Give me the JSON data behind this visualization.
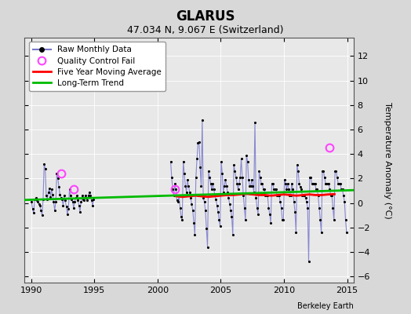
{
  "title": "GLARUS",
  "subtitle": "47.034 N, 9.067 E (Switzerland)",
  "ylabel": "Temperature Anomaly (°C)",
  "credit": "Berkeley Earth",
  "xlim": [
    1989.5,
    2015.5
  ],
  "ylim": [
    -6.5,
    13.5
  ],
  "yticks": [
    -6,
    -4,
    -2,
    0,
    2,
    4,
    6,
    8,
    10,
    12
  ],
  "xticks": [
    1990,
    1995,
    2000,
    2005,
    2010,
    2015
  ],
  "bg_color": "#d8d8d8",
  "plot_bg_color": "#e8e8e8",
  "raw_line_color": "#7777cc",
  "dot_color": "#000000",
  "ma_color": "#ff0000",
  "trend_color": "#00bb00",
  "qc_color": "#ff44ff",
  "raw_data_times": [
    1990.042,
    1990.125,
    1990.208,
    1990.292,
    1990.375,
    1990.458,
    1990.542,
    1990.625,
    1990.708,
    1990.792,
    1990.875,
    1990.958,
    1991.042,
    1991.125,
    1991.208,
    1991.292,
    1991.375,
    1991.458,
    1991.542,
    1991.625,
    1991.708,
    1991.792,
    1991.875,
    1991.958,
    1992.042,
    1992.125,
    1992.208,
    1992.292,
    1992.375,
    1992.458,
    1992.542,
    1992.625,
    1992.708,
    1992.792,
    1992.875,
    1992.958,
    1993.042,
    1993.125,
    1993.208,
    1993.292,
    1993.375,
    1993.458,
    1993.542,
    1993.625,
    1993.708,
    1993.792,
    1993.875,
    1993.958,
    1994.042,
    1994.125,
    1994.208,
    1994.292,
    1994.375,
    1994.458,
    1994.542,
    1994.625,
    1994.708,
    1994.792,
    1994.875,
    1994.958,
    2001.042,
    2001.125,
    2001.208,
    2001.292,
    2001.375,
    2001.458,
    2001.542,
    2001.625,
    2001.708,
    2001.792,
    2001.875,
    2001.958,
    2002.042,
    2002.125,
    2002.208,
    2002.292,
    2002.375,
    2002.458,
    2002.542,
    2002.625,
    2002.708,
    2002.792,
    2002.875,
    2002.958,
    2003.042,
    2003.125,
    2003.208,
    2003.292,
    2003.375,
    2003.458,
    2003.542,
    2003.625,
    2003.708,
    2003.792,
    2003.875,
    2003.958,
    2004.042,
    2004.125,
    2004.208,
    2004.292,
    2004.375,
    2004.458,
    2004.542,
    2004.625,
    2004.708,
    2004.792,
    2004.875,
    2004.958,
    2005.042,
    2005.125,
    2005.208,
    2005.292,
    2005.375,
    2005.458,
    2005.542,
    2005.625,
    2005.708,
    2005.792,
    2005.875,
    2005.958,
    2006.042,
    2006.125,
    2006.208,
    2006.292,
    2006.375,
    2006.458,
    2006.542,
    2006.625,
    2006.708,
    2006.792,
    2006.875,
    2006.958,
    2007.042,
    2007.125,
    2007.208,
    2007.292,
    2007.375,
    2007.458,
    2007.542,
    2007.625,
    2007.708,
    2007.792,
    2007.875,
    2007.958,
    2008.042,
    2008.125,
    2008.208,
    2008.292,
    2008.375,
    2008.458,
    2008.542,
    2008.625,
    2008.708,
    2008.792,
    2008.875,
    2008.958,
    2009.042,
    2009.125,
    2009.208,
    2009.292,
    2009.375,
    2009.458,
    2009.542,
    2009.625,
    2009.708,
    2009.792,
    2009.875,
    2009.958,
    2010.042,
    2010.125,
    2010.208,
    2010.292,
    2010.375,
    2010.458,
    2010.542,
    2010.625,
    2010.708,
    2010.792,
    2010.875,
    2010.958,
    2011.042,
    2011.125,
    2011.208,
    2011.292,
    2011.375,
    2011.458,
    2011.542,
    2011.625,
    2011.708,
    2011.792,
    2011.875,
    2011.958,
    2012.042,
    2012.125,
    2012.208,
    2012.292,
    2012.375,
    2012.458,
    2012.542,
    2012.625,
    2012.708,
    2012.792,
    2012.875,
    2012.958,
    2013.042,
    2013.125,
    2013.208,
    2013.292,
    2013.375,
    2013.458,
    2013.542,
    2013.625,
    2013.708,
    2013.792,
    2013.875,
    2013.958,
    2014.042,
    2014.125,
    2014.208,
    2014.292,
    2014.375,
    2014.458,
    2014.542,
    2014.625,
    2014.708,
    2014.792,
    2014.875,
    2014.958
  ],
  "raw_data_values": [
    0.1,
    -0.5,
    -0.8,
    0.3,
    0.4,
    0.2,
    0.1,
    -0.1,
    -0.2,
    -0.6,
    -1.0,
    0.3,
    3.2,
    2.8,
    0.6,
    0.3,
    0.9,
    1.2,
    0.5,
    1.1,
    0.7,
    0.1,
    -0.6,
    0.1,
    2.4,
    2.0,
    1.3,
    0.7,
    0.4,
    0.3,
    -0.2,
    0.6,
    0.2,
    -0.3,
    -0.9,
    -0.5,
    1.1,
    0.6,
    0.3,
    0.1,
    -0.4,
    0.1,
    0.4,
    0.6,
    0.2,
    -0.2,
    -0.7,
    0.1,
    0.6,
    0.3,
    0.2,
    0.6,
    0.4,
    0.2,
    0.6,
    0.9,
    0.6,
    0.2,
    -0.2,
    0.3,
    3.4,
    2.1,
    1.1,
    0.6,
    1.6,
    1.1,
    0.2,
    0.1,
    0.6,
    -0.4,
    -1.1,
    -1.4,
    3.4,
    2.4,
    1.4,
    0.9,
    1.9,
    1.4,
    0.9,
    0.4,
    -0.1,
    -0.6,
    -1.6,
    -2.6,
    2.1,
    3.6,
    4.9,
    5.0,
    2.9,
    1.4,
    6.8,
    0.4,
    0.1,
    -0.6,
    -2.1,
    -3.6,
    2.6,
    2.1,
    1.6,
    1.1,
    1.6,
    1.1,
    0.6,
    0.3,
    -0.2,
    -0.7,
    -1.4,
    -1.9,
    3.4,
    2.4,
    0.9,
    1.4,
    1.9,
    1.4,
    0.9,
    0.4,
    -0.1,
    -0.6,
    -1.1,
    -2.6,
    3.1,
    2.6,
    2.1,
    1.6,
    1.1,
    1.6,
    2.1,
    3.6,
    2.1,
    0.6,
    -0.4,
    -1.4,
    3.9,
    3.4,
    1.9,
    1.4,
    1.4,
    1.9,
    1.4,
    0.9,
    6.6,
    0.4,
    -0.4,
    -0.9,
    2.6,
    2.1,
    1.6,
    1.6,
    1.1,
    1.1,
    0.6,
    0.6,
    0.6,
    -0.4,
    -0.9,
    -1.6,
    1.6,
    1.6,
    1.1,
    1.1,
    1.1,
    0.6,
    0.6,
    0.6,
    0.1,
    -0.4,
    -1.4,
    -1.4,
    1.9,
    1.6,
    1.1,
    1.6,
    1.1,
    0.6,
    0.6,
    1.6,
    1.1,
    0.1,
    -0.7,
    -2.4,
    3.1,
    2.6,
    1.6,
    1.3,
    1.1,
    0.6,
    0.6,
    0.6,
    0.4,
    0.1,
    -0.4,
    -4.8,
    2.1,
    2.1,
    1.6,
    1.6,
    1.6,
    1.6,
    1.1,
    1.1,
    0.6,
    -0.4,
    -1.4,
    -2.4,
    2.6,
    2.6,
    2.1,
    1.6,
    1.6,
    1.6,
    1.6,
    1.1,
    0.6,
    0.6,
    -0.4,
    -1.4,
    2.6,
    2.6,
    2.1,
    1.6,
    1.6,
    1.6,
    1.1,
    1.1,
    0.6,
    0.1,
    -1.4,
    -2.4
  ],
  "qc_fail_points": [
    [
      1992.375,
      2.4
    ],
    [
      1993.375,
      1.1
    ],
    [
      2001.375,
      1.1
    ],
    [
      2013.625,
      4.5
    ]
  ],
  "moving_avg_times": [
    2001.5,
    2002.0,
    2002.5,
    2003.0,
    2003.5,
    2004.0,
    2004.5,
    2005.0,
    2005.5,
    2006.0,
    2006.5,
    2007.0,
    2007.5,
    2008.0,
    2008.5,
    2009.0,
    2009.5,
    2010.0,
    2010.5,
    2011.0,
    2011.5,
    2012.0,
    2012.5,
    2013.0,
    2013.5,
    2014.0
  ],
  "moving_avg_values": [
    0.55,
    0.5,
    0.55,
    0.6,
    0.55,
    0.5,
    0.55,
    0.6,
    0.65,
    0.65,
    0.7,
    0.75,
    0.7,
    0.65,
    0.65,
    0.6,
    0.65,
    0.7,
    0.65,
    0.6,
    0.65,
    0.7,
    0.65,
    0.65,
    0.7,
    0.72
  ],
  "trend_x": [
    1989.5,
    2015.5
  ],
  "trend_y": [
    0.25,
    1.05
  ]
}
